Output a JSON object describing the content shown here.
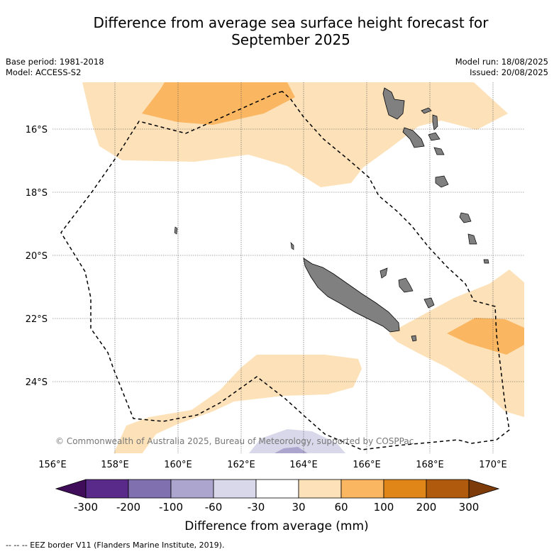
{
  "title_line1": "Difference from average sea surface height forecast for",
  "title_line2": "September 2025",
  "meta_left": [
    "Base period: 1981-2018",
    "Model: ACCESS-S2"
  ],
  "meta_right": [
    "Model run: 18/08/2025",
    "Issued: 20/08/2025"
  ],
  "copyright": "© Commonwealth of Australia 2025, Bureau of Meteorology, supported by COSPPac",
  "lon_labels": [
    "156°E",
    "158°E",
    "160°E",
    "162°E",
    "164°E",
    "166°E",
    "168°E",
    "170°E"
  ],
  "lat_labels": [
    "16°S",
    "18°S",
    "20°S",
    "22°S",
    "24°S"
  ],
  "colorbar": {
    "ticks": [
      "-300",
      "-200",
      "-100",
      "-60",
      "-30",
      "30",
      "60",
      "100",
      "200",
      "300"
    ],
    "colors": [
      "#3f0d5a",
      "#5a2a8a",
      "#8070b0",
      "#aca6cf",
      "#d8d8ea",
      "#ffffff",
      "#fde1b8",
      "#fbb661",
      "#e08618",
      "#b05a0d",
      "#7c3b09"
    ],
    "label": "Difference from average (mm)"
  },
  "footer": "--  --  -- EEZ border V11 (Flanders Marine Institute, 2019)."
}
